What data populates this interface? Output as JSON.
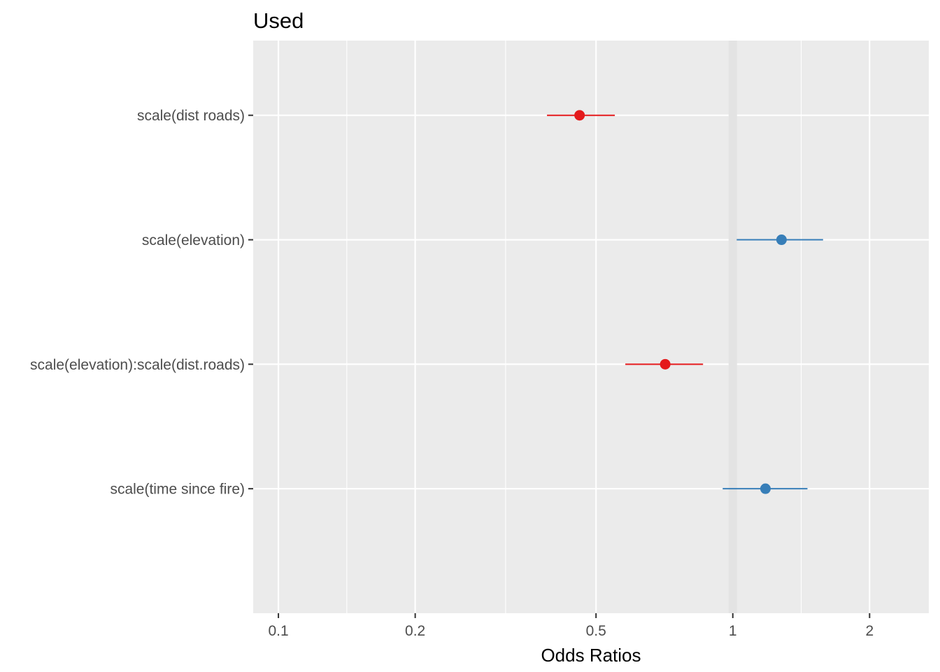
{
  "chart_data": {
    "type": "forest",
    "title": "Used",
    "xlabel": "Odds Ratios",
    "ylabel": "",
    "x_scale": "log10",
    "xlim": [
      0.088,
      2.7
    ],
    "x_ticks": [
      0.1,
      0.2,
      0.5,
      1,
      2
    ],
    "x_tick_labels": [
      "0.1",
      "0.2",
      "0.5",
      "1",
      "2"
    ],
    "x_minor_ticks": [
      0.14142,
      0.31623,
      1.41421
    ],
    "reference_line": 1,
    "grid": true,
    "legend": "none",
    "colors": {
      "positive": "#377EB8",
      "negative": "#E41A1C",
      "panel_background": "#EBEBEB",
      "grid": "#FFFFFF",
      "reference_line": "#E3E3E3"
    },
    "terms": [
      {
        "label": "scale(dist roads)",
        "estimate": 0.46,
        "conf_low": 0.39,
        "conf_high": 0.55,
        "direction": "negative"
      },
      {
        "label": "scale(elevation)",
        "estimate": 1.28,
        "conf_low": 1.02,
        "conf_high": 1.58,
        "direction": "positive"
      },
      {
        "label": "scale(elevation):scale(dist.roads)",
        "estimate": 0.71,
        "conf_low": 0.58,
        "conf_high": 0.86,
        "direction": "negative"
      },
      {
        "label": "scale(time since fire)",
        "estimate": 1.18,
        "conf_low": 0.95,
        "conf_high": 1.46,
        "direction": "positive"
      }
    ]
  }
}
